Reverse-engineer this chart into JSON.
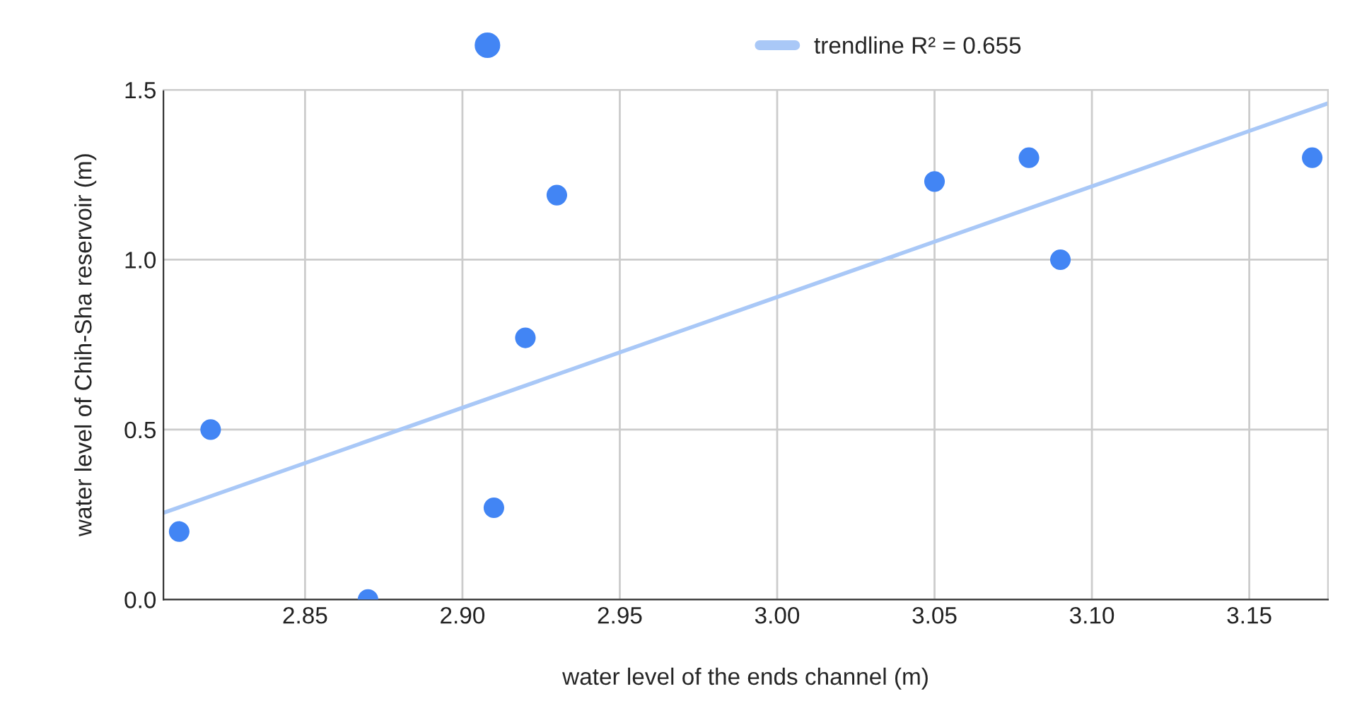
{
  "chart_data": {
    "type": "scatter",
    "xlabel": "water level of the ends channel (m)",
    "ylabel": "water level of Chih-Sha reservoir (m)",
    "series": [
      {
        "color": "#4285f4",
        "marker": "circle",
        "x": [
          2.81,
          2.82,
          2.87,
          2.91,
          2.92,
          2.93,
          3.05,
          3.08,
          3.09,
          3.17
        ],
        "values": [
          0.2,
          0.5,
          0.0,
          0.27,
          0.77,
          1.19,
          1.23,
          1.3,
          1.0,
          1.3
        ]
      },
      {
        "type": "line",
        "name": "trendline R² = 0.655",
        "color": "#a9c8f7",
        "x": [
          2.805,
          3.175
        ],
        "values": [
          0.255,
          1.46
        ]
      }
    ],
    "xlim": [
      2.805,
      3.175
    ],
    "xticks": [
      2.85,
      {
        "value": 2.9,
        "label": "2.90"
      },
      2.95,
      {
        "value": 3,
        "label": "3.00"
      },
      3.05,
      {
        "value": 3.1,
        "label": "3.10"
      },
      3.15
    ],
    "ylim": [
      0,
      1.5
    ],
    "yticks": [
      {
        "value": 0,
        "label": "0.0"
      },
      0.5,
      {
        "value": 1,
        "label": "1.0"
      },
      1.5
    ],
    "grid": true,
    "legend": "top"
  }
}
